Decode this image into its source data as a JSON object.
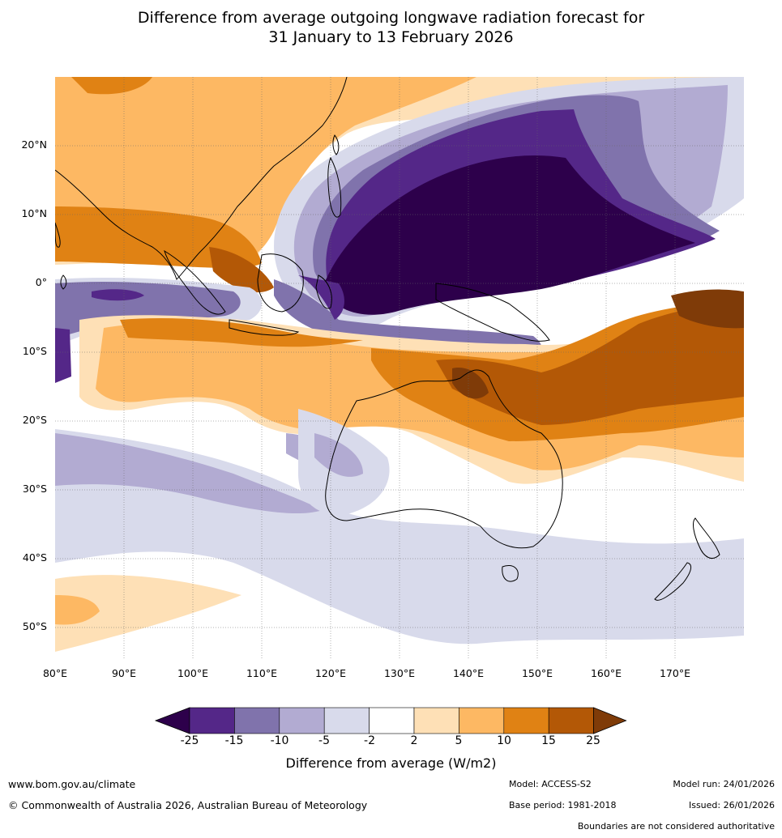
{
  "title": {
    "line1": "Difference from average outgoing longwave radiation forecast for",
    "line2": "31 January to 13 February 2026"
  },
  "map": {
    "lat_labels": [
      "20°N",
      "10°N",
      "0°",
      "10°S",
      "20°S",
      "30°S",
      "40°S",
      "50°S"
    ],
    "lon_labels": [
      "80°E",
      "90°E",
      "100°E",
      "110°E",
      "120°E",
      "130°E",
      "140°E",
      "150°E",
      "160°E",
      "170°E"
    ],
    "lat_range": [
      -55,
      30
    ],
    "lon_range": [
      80,
      180
    ]
  },
  "colorbar": {
    "ticks": [
      "-25",
      "-15",
      "-10",
      "-5",
      "-2",
      "2",
      "5",
      "10",
      "15",
      "25"
    ],
    "colors": [
      "#2d004b",
      "#542788",
      "#8073ac",
      "#b2abd2",
      "#d8daeb",
      "#ffffff",
      "#fee0b6",
      "#fdb863",
      "#e08214",
      "#b35806",
      "#7f3b08"
    ],
    "label": "Difference from average (W/m2)"
  },
  "footer": {
    "website": "www.bom.gov.au/climate",
    "copyright": "© Commonwealth of Australia 2026, Australian Bureau of Meteorology",
    "model": "Model: ACCESS-S2",
    "base_period": "Base period: 1981-2018",
    "model_run": "Model run: 24/01/2026",
    "issued": "Issued: 26/01/2026",
    "disclaimer": "Boundaries are not considered authoritative"
  }
}
